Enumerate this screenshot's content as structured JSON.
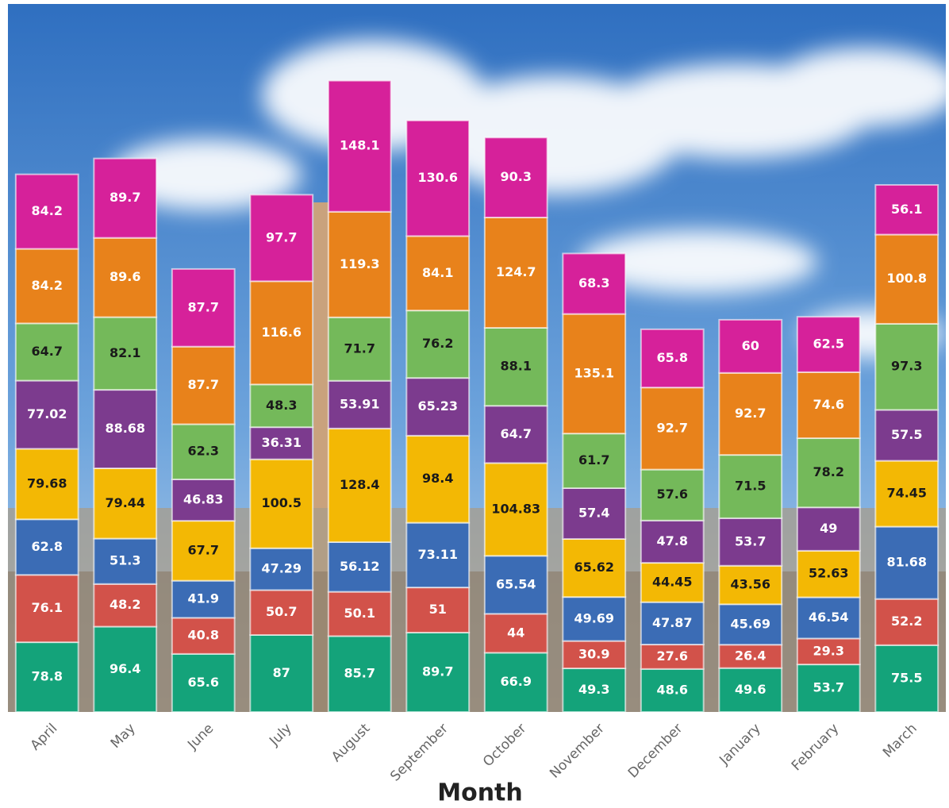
{
  "chart_data": {
    "type": "stacked_bar",
    "x_label": "Month",
    "categories": [
      "April",
      "May",
      "June",
      "July",
      "August",
      "September",
      "October",
      "November",
      "December",
      "January",
      "February",
      "March"
    ],
    "ylim": [
      0,
      800
    ],
    "series": [
      {
        "color": "#14a37a",
        "label_color": "#ffffff",
        "values": [
          78.8,
          96.4,
          65.6,
          87,
          85.7,
          89.7,
          66.9,
          49.3,
          48.6,
          49.6,
          53.7,
          75.5
        ]
      },
      {
        "color": "#d2524a",
        "label_color": "#ffffff",
        "values": [
          76.1,
          48.2,
          40.8,
          50.7,
          50.1,
          51,
          44,
          30.9,
          27.6,
          26.4,
          29.3,
          52.2
        ]
      },
      {
        "color": "#3b6cb5",
        "label_color": "#ffffff",
        "values": [
          62.8,
          51.3,
          41.9,
          47.29,
          56.12,
          73.11,
          65.54,
          49.69,
          47.87,
          45.69,
          46.54,
          81.68
        ]
      },
      {
        "color": "#f3b804",
        "label_color": "#1a1a1a",
        "values": [
          79.68,
          79.44,
          67.7,
          100.5,
          128.4,
          98.4,
          104.83,
          65.62,
          44.45,
          43.56,
          52.63,
          74.45
        ]
      },
      {
        "color": "#7c3b8e",
        "label_color": "#ffffff",
        "values": [
          77.02,
          88.68,
          46.83,
          36.31,
          53.91,
          65.23,
          64.7,
          57.4,
          47.8,
          53.7,
          49,
          57.5
        ]
      },
      {
        "color": "#74b95a",
        "label_color": "#1a1a1a",
        "values": [
          64.7,
          82.1,
          62.3,
          48.3,
          71.7,
          76.2,
          88.1,
          61.7,
          57.6,
          71.5,
          78.2,
          97.3
        ]
      },
      {
        "color": "#e8821b",
        "label_color": "#ffffff",
        "values": [
          84.2,
          89.6,
          87.7,
          116.6,
          119.3,
          84.1,
          124.7,
          135.1,
          92.7,
          92.7,
          74.6,
          100.8
        ]
      },
      {
        "color": "#d6219a",
        "label_color": "#ffffff",
        "values": [
          84.2,
          89.7,
          87.7,
          97.7,
          148.1,
          130.6,
          90.3,
          68.3,
          65.8,
          60,
          62.5,
          56.1
        ]
      }
    ]
  }
}
